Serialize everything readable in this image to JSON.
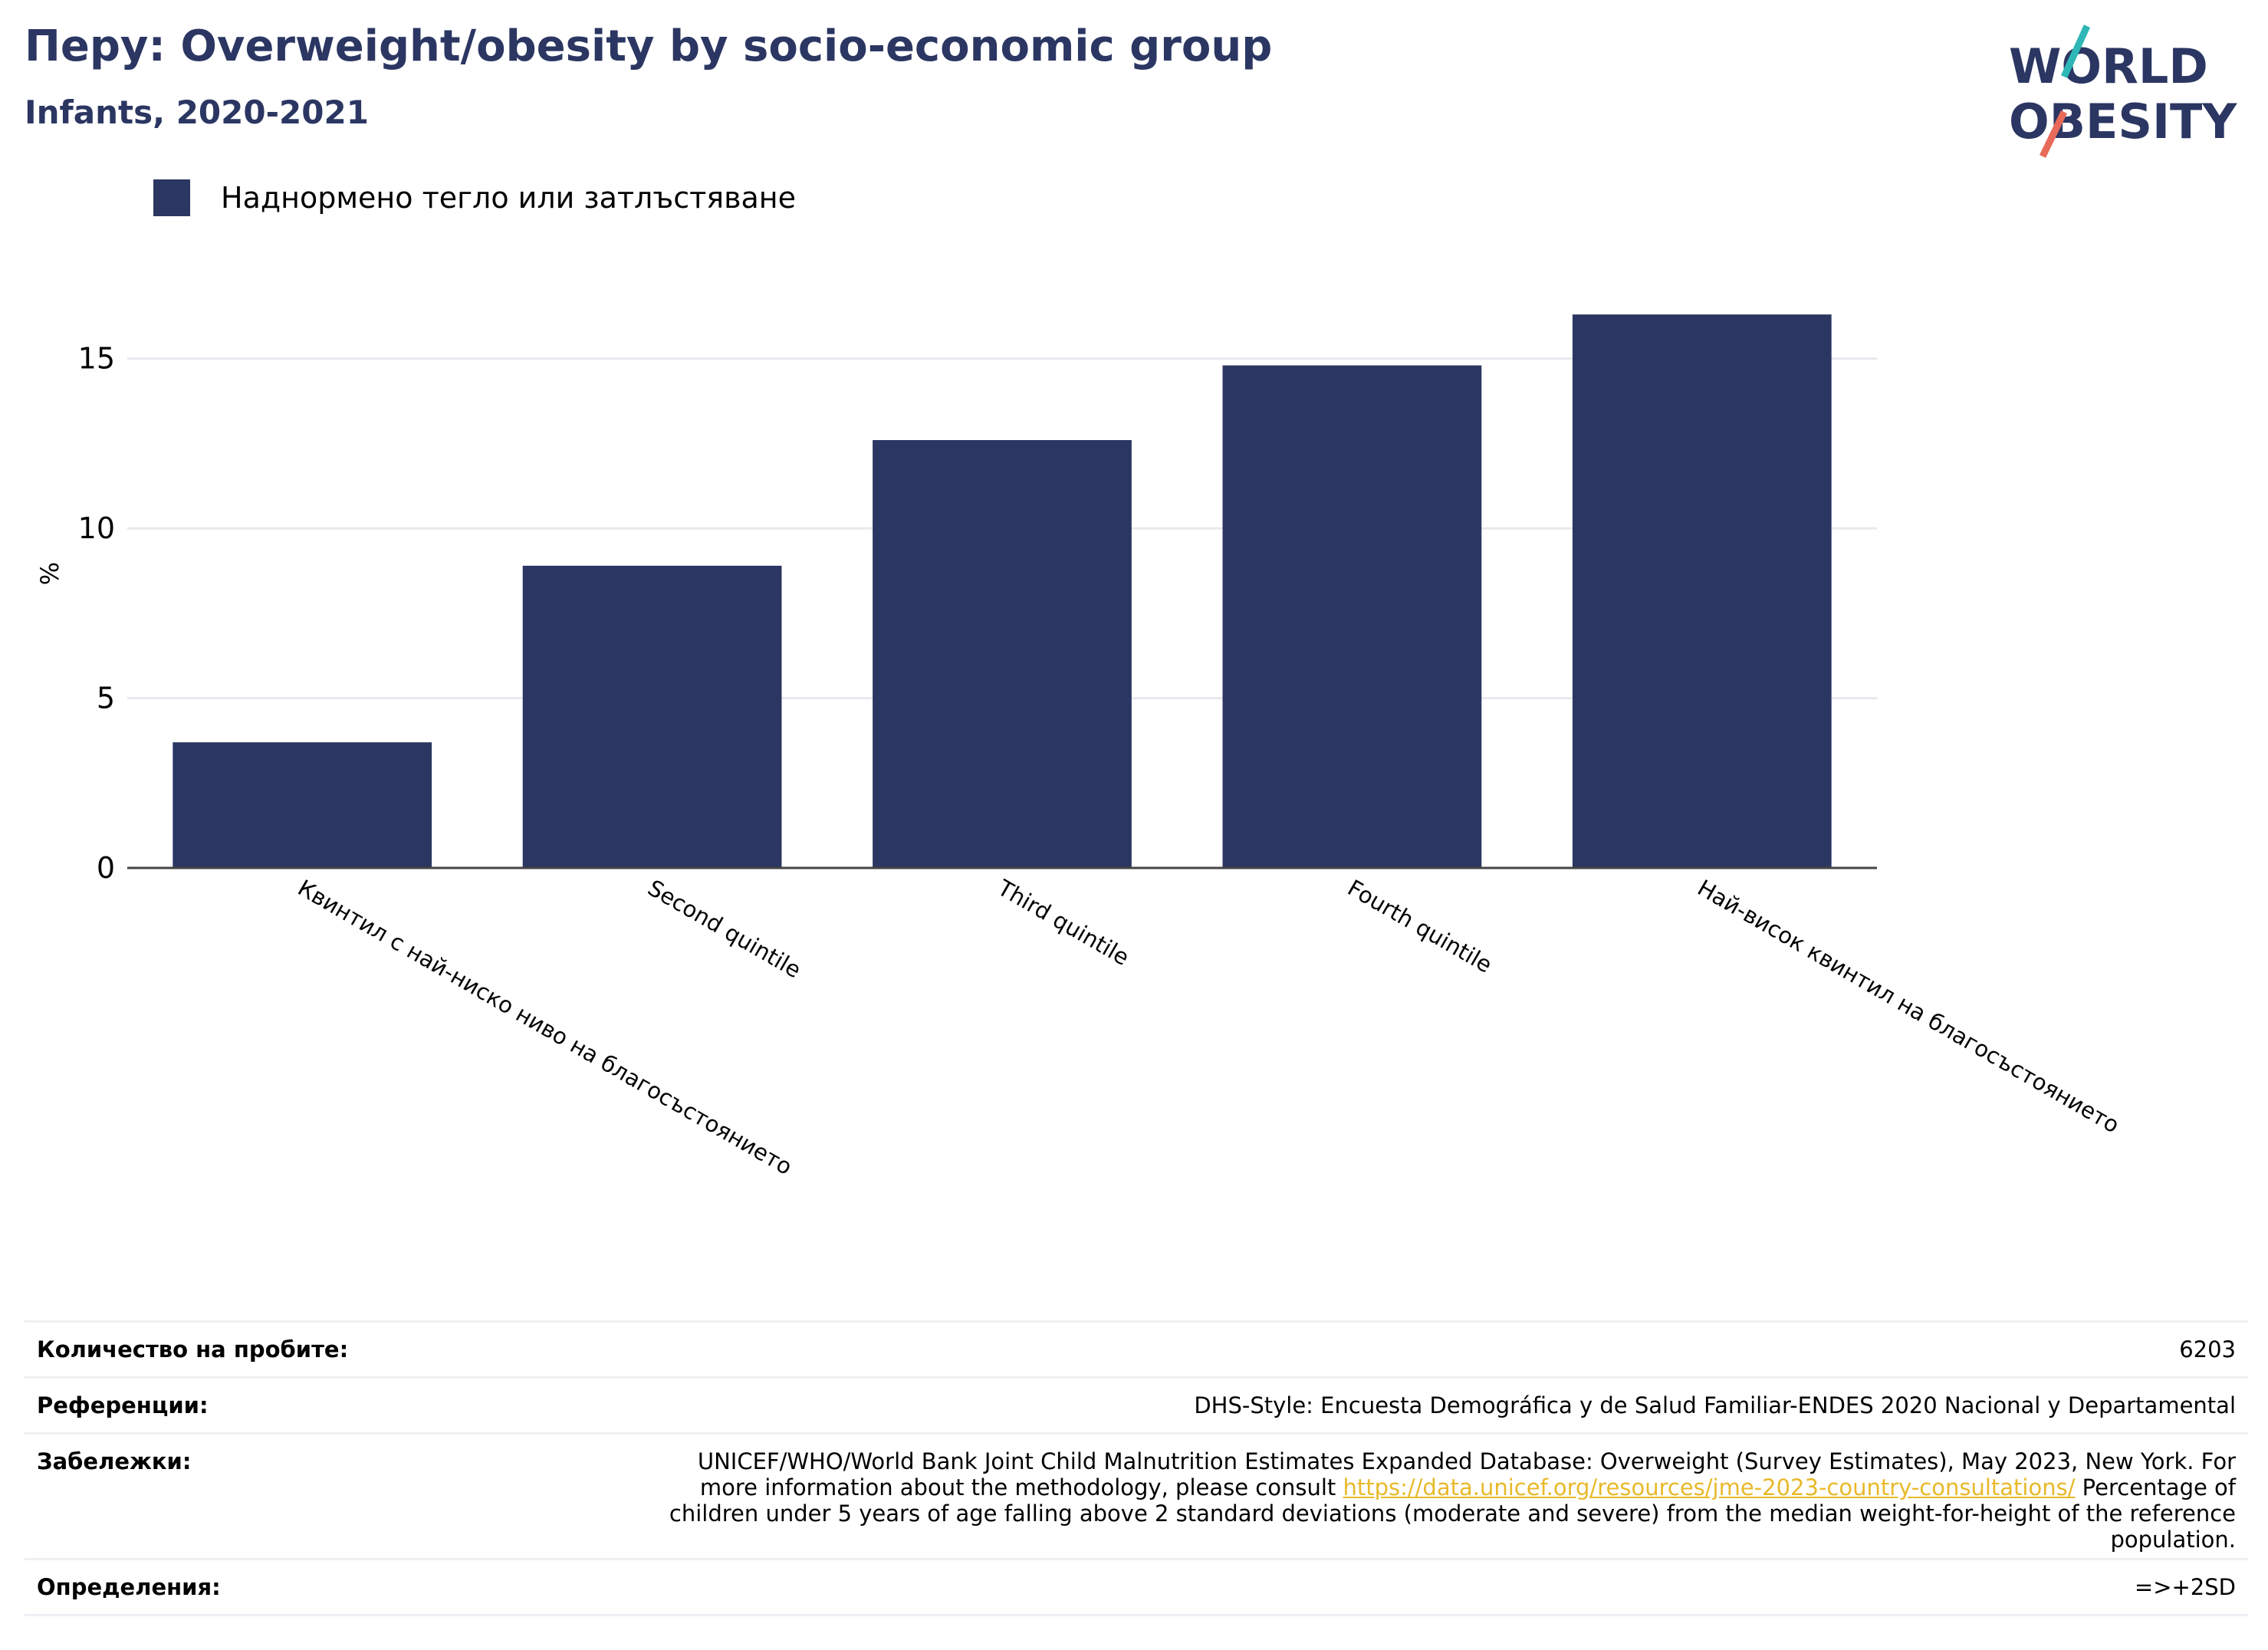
{
  "header": {
    "title": "Перу: Overweight/obesity by socio-economic group",
    "subtitle": "Infants, 2020-2021"
  },
  "logo": {
    "line1": "WORLD",
    "line2": "OBESITY"
  },
  "colors": {
    "bar": "#2b3662",
    "title": "#2b3662",
    "grid": "#e6e9ee",
    "axis": "#444444",
    "link": "#e8b92a",
    "logo_teal": "#2fb7b6",
    "logo_red": "#e86a5a"
  },
  "chart_data": {
    "type": "bar",
    "categories": [
      "Квинтил с най-ниско ниво на благосъстоянието",
      "Second quintile",
      "Third quintile",
      "Fourth quintile",
      "Най-висок квинтил на благосъстоянието"
    ],
    "series": [
      {
        "name": "Наднормено тегло или затлъстяване",
        "values": [
          3.7,
          8.9,
          12.6,
          14.8,
          16.3
        ]
      }
    ],
    "ylabel": "%",
    "xlabel": "",
    "ylim": [
      0,
      17.5
    ],
    "yticks": [
      0,
      5,
      10,
      15
    ],
    "grid": true,
    "legend": "top-left"
  },
  "footer": {
    "sample_label": "Количество на пробите:",
    "sample_value": "6203",
    "references_label": "Референции:",
    "references_value": "DHS-Style: Encuesta Demográfica y de Salud Familiar-ENDES 2020 Nacional y Departamental",
    "notes_label": "Забележки:",
    "notes_before": "UNICEF/WHO/World Bank Joint Child Malnutrition Estimates Expanded Database: Overweight (Survey Estimates), May 2023, New York. For more information about the methodology, please consult ",
    "notes_link": "https://data.unicef.org/resources/jme-2023-country-consultations/",
    "notes_after": " Percentage of children under 5 years of age falling above 2 standard deviations (moderate and severe) from the median weight-for-height of the reference population.",
    "definitions_label": "Определения:",
    "definitions_value": "=>+2SD"
  }
}
